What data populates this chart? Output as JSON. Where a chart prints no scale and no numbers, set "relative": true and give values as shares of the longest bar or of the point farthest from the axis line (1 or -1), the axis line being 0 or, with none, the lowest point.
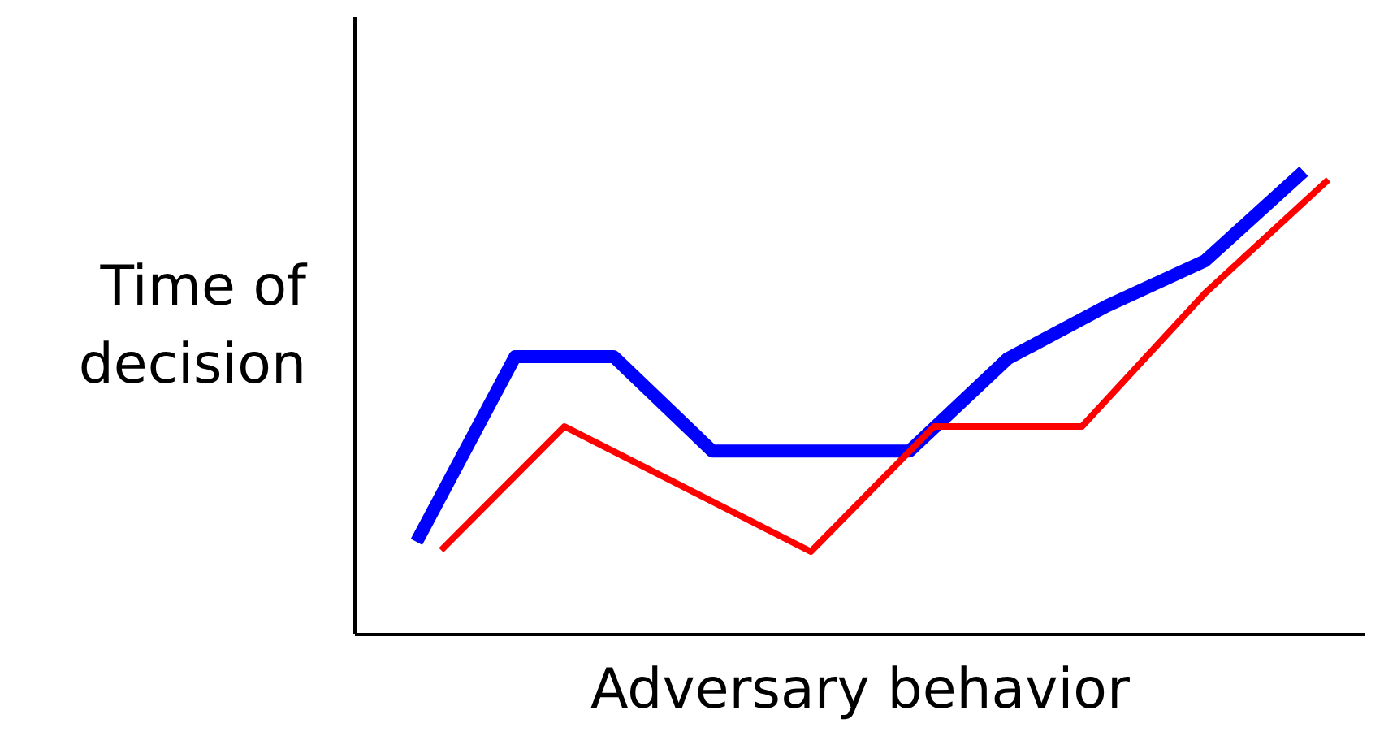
{
  "chart_data": {
    "type": "line",
    "relative": true,
    "xlabel": "Adversary behavior",
    "ylabel": "Time of\ndecision",
    "marker": "none",
    "line_style": "solid",
    "categories": [
      null,
      null,
      null,
      null,
      null,
      null,
      null,
      null,
      null,
      null,
      null,
      null,
      null,
      null,
      null,
      null,
      null,
      null,
      null,
      null,
      null,
      null,
      null,
      null,
      null,
      null,
      null,
      null,
      null,
      null,
      null,
      null,
      null,
      null,
      null,
      null,
      null,
      null,
      null,
      null,
      null
    ],
    "series": [
      {
        "color": "#0000ff",
        "values": [
          null,
          null,
          0.2,
          null,
          null,
          null,
          0.6,
          null,
          null,
          null,
          0.6,
          null,
          null,
          null,
          0.396,
          null,
          null,
          null,
          null,
          null,
          null,
          null,
          0.396,
          null,
          null,
          null,
          0.596,
          null,
          null,
          null,
          0.709,
          null,
          null,
          null,
          0.807,
          null,
          null,
          null,
          1.0,
          null,
          null
        ]
      },
      {
        "color": "#ff0000",
        "values": [
          null,
          null,
          null,
          0.182,
          null,
          null,
          null,
          null,
          0.449,
          null,
          null,
          null,
          null,
          null,
          null,
          null,
          null,
          null,
          0.179,
          null,
          null,
          null,
          null,
          0.449,
          null,
          null,
          null,
          null,
          null,
          0.449,
          null,
          null,
          null,
          null,
          0.737,
          null,
          null,
          null,
          null,
          0.982,
          null
        ]
      }
    ]
  }
}
